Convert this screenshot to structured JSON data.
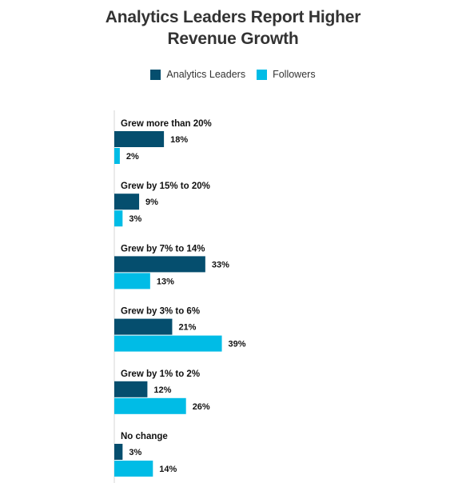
{
  "chart_data": {
    "type": "bar",
    "orientation": "horizontal",
    "title": "Analytics Leaders Report Higher Revenue Growth",
    "title_lines": [
      "Analytics Leaders Report Higher",
      "Revenue Growth"
    ],
    "legend_placement": "top",
    "grid": false,
    "xlim": [
      0,
      40
    ],
    "categories": [
      "Grew more than 20%",
      "Grew by 15% to 20%",
      "Grew by 7% to 14%",
      "Grew by 3% to 6%",
      "Grew by 1% to 2%",
      "No change"
    ],
    "series": [
      {
        "name": "Analytics Leaders",
        "color": "#054e6e",
        "values": [
          18,
          9,
          33,
          21,
          12,
          3
        ],
        "labels": [
          "18%",
          "9%",
          "33%",
          "21%",
          "12%",
          "3%"
        ]
      },
      {
        "name": "Followers",
        "color": "#00bce6",
        "values": [
          2,
          3,
          13,
          39,
          26,
          14
        ],
        "labels": [
          "2%",
          "3%",
          "13%",
          "39%",
          "26%",
          "14%"
        ]
      }
    ]
  }
}
